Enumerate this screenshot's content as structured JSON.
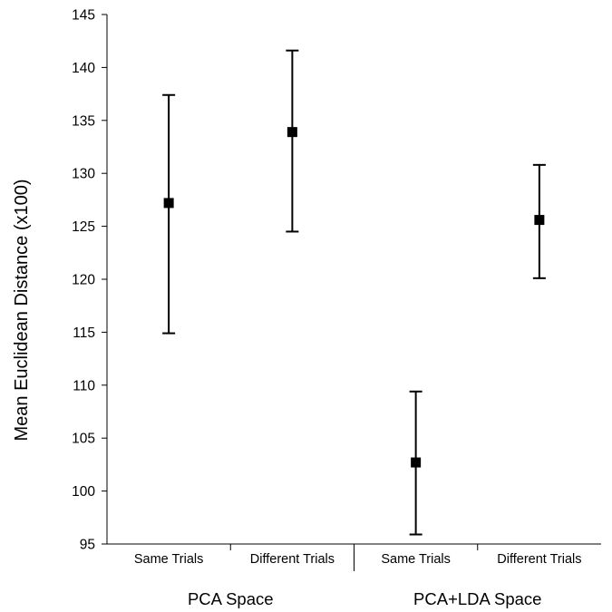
{
  "chart_data": {
    "type": "scatter",
    "ylabel": "Mean Euclidean Distance (x100)",
    "ylim": [
      95,
      145
    ],
    "yticks": [
      95,
      100,
      105,
      110,
      115,
      120,
      125,
      130,
      135,
      140,
      145
    ],
    "categories": [
      "Same Trials",
      "Different Trials",
      "Same Trials",
      "Different Trials"
    ],
    "groups": [
      {
        "label": "PCA Space",
        "categories": [
          0,
          1
        ]
      },
      {
        "label": "PCA+LDA Space",
        "categories": [
          2,
          3
        ]
      }
    ],
    "points": [
      {
        "category": 0,
        "mean": 127.2,
        "lower": 114.9,
        "upper": 137.4
      },
      {
        "category": 1,
        "mean": 133.9,
        "lower": 124.5,
        "upper": 141.6
      },
      {
        "category": 2,
        "mean": 102.7,
        "lower": 95.9,
        "upper": 109.4
      },
      {
        "category": 3,
        "mean": 125.6,
        "lower": 120.1,
        "upper": 130.8
      }
    ],
    "marker_color": "#000000",
    "grid": false
  }
}
